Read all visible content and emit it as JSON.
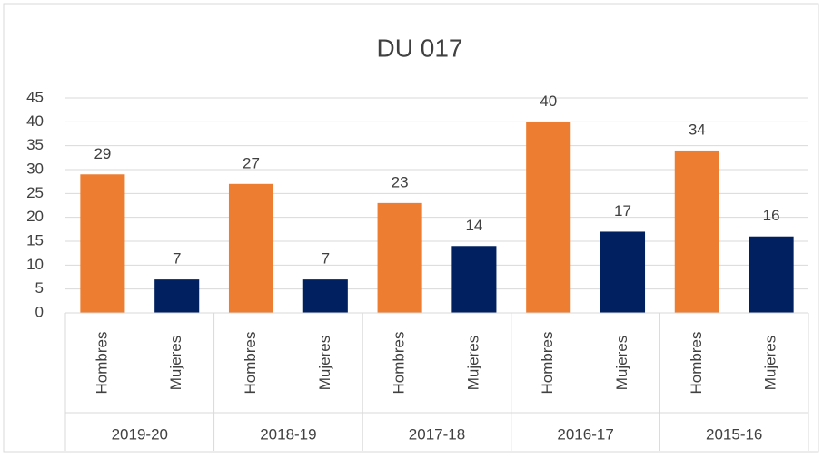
{
  "chart_data": {
    "type": "bar",
    "title": "DU 017",
    "groups": [
      "2019-20",
      "2018-19",
      "2017-18",
      "2016-17",
      "2015-16"
    ],
    "categories": [
      "Hombres",
      "Mujeres",
      "Hombres",
      "Mujeres",
      "Hombres",
      "Mujeres",
      "Hombres",
      "Mujeres",
      "Hombres",
      "Mujeres"
    ],
    "values": [
      29,
      7,
      27,
      7,
      23,
      14,
      40,
      17,
      34,
      16
    ],
    "colors": [
      "#ed7d31",
      "#002060",
      "#ed7d31",
      "#002060",
      "#ed7d31",
      "#002060",
      "#ed7d31",
      "#002060",
      "#ed7d31",
      "#002060"
    ],
    "ylim": [
      0,
      45
    ],
    "yticks": [
      0,
      5,
      10,
      15,
      20,
      25,
      30,
      35,
      40,
      45
    ],
    "grid": true
  }
}
